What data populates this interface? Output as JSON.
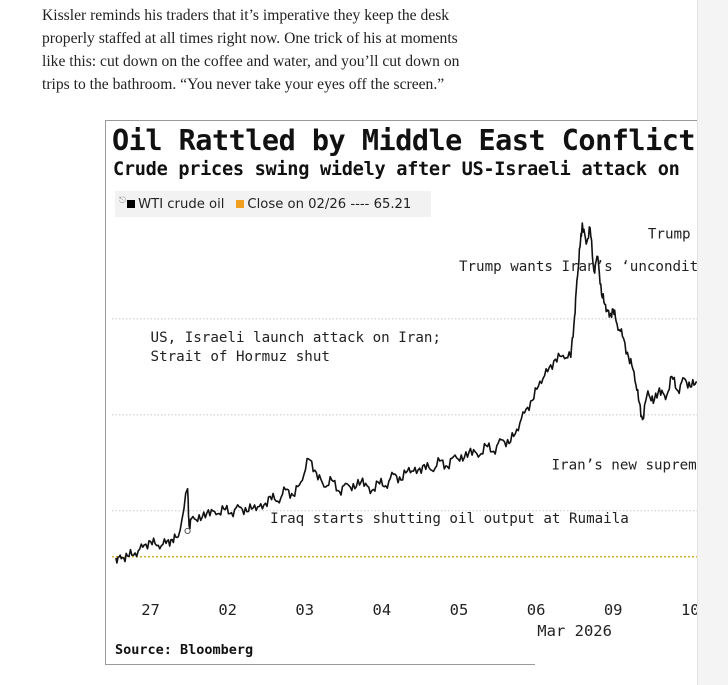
{
  "article": {
    "paragraph_lines": [
      "Kissler reminds his traders that it’s imperative they keep the desk",
      "properly staffed at all times right now. One trick of his at moments",
      "like this: cut down on the coffee and water, and you’ll cut down on",
      "trips to the bathroom. “You never take your eyes off the screen.”"
    ]
  },
  "chart_data": {
    "type": "line",
    "title": "Oil Rattled by Middle East Conflict",
    "subtitle": "Crude prices swing widely after US-Israeli attack on",
    "legend": {
      "placement": "top-left",
      "marker_icon": "line-marker-icon",
      "entries": [
        {
          "label": "WTI crude oil",
          "color": "#000000"
        },
        {
          "label": "Close on 02/26 ---- 65.21",
          "color": "#f0a020"
        }
      ]
    },
    "reference_line": {
      "name": "Close on 02/26",
      "value": 65.21,
      "color": "#d4a017"
    },
    "x_ticks": [
      {
        "label": "27",
        "x": 0
      },
      {
        "label": "02",
        "x": 1
      },
      {
        "label": "03",
        "x": 2
      },
      {
        "label": "04",
        "x": 3
      },
      {
        "label": "05",
        "x": 4
      },
      {
        "label": "06",
        "x": 5
      },
      {
        "label": "09",
        "x": 6
      },
      {
        "label": "10",
        "x": 7
      }
    ],
    "x_month_label": {
      "label": "Mar 2026",
      "x": 5.5
    },
    "xlim": [
      -0.5,
      7.1
    ],
    "ylim": [
      63.2,
      100
    ],
    "gridlines_y": [
      70,
      80,
      90
    ],
    "grid": true,
    "series": [
      {
        "color": "#111111",
        "points": [
          [
            -0.45,
            65.1
          ],
          [
            -0.38,
            65.0
          ],
          [
            -0.3,
            65.3
          ],
          [
            -0.2,
            65.6
          ],
          [
            -0.1,
            66.2
          ],
          [
            0.0,
            66.8
          ],
          [
            0.1,
            66.4
          ],
          [
            0.2,
            66.6
          ],
          [
            0.28,
            67.0
          ],
          [
            0.36,
            67.3
          ],
          [
            0.48,
            72.3
          ],
          [
            0.5,
            68.4
          ],
          [
            0.55,
            69.4
          ],
          [
            0.65,
            69.0
          ],
          [
            0.75,
            70.1
          ],
          [
            0.85,
            69.6
          ],
          [
            0.95,
            70.2
          ],
          [
            1.05,
            69.8
          ],
          [
            1.15,
            70.4
          ],
          [
            1.25,
            69.9
          ],
          [
            1.35,
            70.6
          ],
          [
            1.45,
            70.2
          ],
          [
            1.55,
            71.5
          ],
          [
            1.65,
            71.0
          ],
          [
            1.75,
            72.2
          ],
          [
            1.85,
            71.6
          ],
          [
            1.95,
            73.0
          ],
          [
            2.05,
            75.4
          ],
          [
            2.15,
            74.0
          ],
          [
            2.25,
            72.5
          ],
          [
            2.35,
            73.2
          ],
          [
            2.45,
            72.0
          ],
          [
            2.55,
            72.8
          ],
          [
            2.65,
            72.3
          ],
          [
            2.75,
            73.4
          ],
          [
            2.85,
            71.8
          ],
          [
            2.95,
            73.0
          ],
          [
            3.05,
            72.6
          ],
          [
            3.15,
            73.8
          ],
          [
            3.25,
            73.2
          ],
          [
            3.35,
            74.5
          ],
          [
            3.45,
            73.9
          ],
          [
            3.55,
            74.8
          ],
          [
            3.65,
            74.2
          ],
          [
            3.75,
            75.2
          ],
          [
            3.85,
            74.6
          ],
          [
            3.95,
            75.8
          ],
          [
            4.05,
            75.2
          ],
          [
            4.15,
            76.5
          ],
          [
            4.25,
            75.6
          ],
          [
            4.35,
            76.8
          ],
          [
            4.45,
            76.2
          ],
          [
            4.55,
            77.4
          ],
          [
            4.65,
            77.0
          ],
          [
            4.75,
            78.5
          ],
          [
            4.85,
            80.2
          ],
          [
            4.95,
            81.5
          ],
          [
            5.05,
            83.5
          ],
          [
            5.15,
            84.5
          ],
          [
            5.25,
            85.8
          ],
          [
            5.35,
            86.2
          ],
          [
            5.45,
            86.0
          ],
          [
            5.5,
            90.3
          ],
          [
            5.53,
            94.0
          ],
          [
            5.57,
            97.5
          ],
          [
            5.6,
            100.0
          ],
          [
            5.65,
            97.8
          ],
          [
            5.7,
            99.5
          ],
          [
            5.75,
            95.0
          ],
          [
            5.8,
            96.5
          ],
          [
            5.85,
            92.5
          ],
          [
            5.9,
            91.5
          ],
          [
            5.95,
            90.2
          ],
          [
            6.0,
            91.0
          ],
          [
            6.05,
            89.5
          ],
          [
            6.12,
            88.2
          ],
          [
            6.2,
            86.0
          ],
          [
            6.27,
            84.5
          ],
          [
            6.33,
            81.5
          ],
          [
            6.38,
            79.5
          ],
          [
            6.45,
            82.5
          ],
          [
            6.52,
            81.2
          ],
          [
            6.6,
            82.8
          ],
          [
            6.68,
            81.6
          ],
          [
            6.76,
            84.0
          ],
          [
            6.84,
            82.5
          ],
          [
            6.92,
            83.8
          ],
          [
            7.0,
            82.9
          ],
          [
            7.08,
            83.5
          ]
        ]
      }
    ],
    "annotations": [
      {
        "lines": [
          "Trump wants Iran’s ‘unconditional surrender’"
        ],
        "x": 4.0,
        "y": 95.0
      },
      {
        "lines": [
          "Trump"
        ],
        "x": 6.45,
        "y": 98.4
      },
      {
        "lines": [
          "US, Israeli launch attack on Iran;",
          "Strait of Hormuz shut"
        ],
        "x": 0.0,
        "y": 87.6
      },
      {
        "lines": [
          "Iran’s new suprem"
        ],
        "x": 5.2,
        "y": 74.3
      },
      {
        "lines": [
          "Iraq starts shutting oil output at Rumaila"
        ],
        "x": 1.55,
        "y": 68.7
      }
    ],
    "source": "Source: Bloomberg"
  }
}
